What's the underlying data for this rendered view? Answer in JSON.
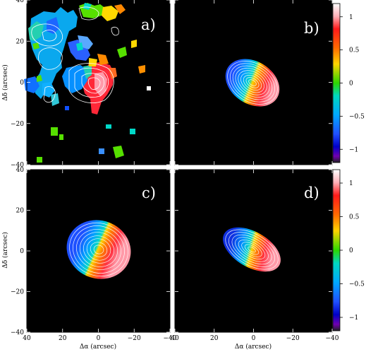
{
  "chart_data": {
    "type": "heatmap",
    "panels": [
      {
        "label": "a)",
        "kind": "observed"
      },
      {
        "label": "b)",
        "kind": "model"
      },
      {
        "label": "c)",
        "kind": "model"
      },
      {
        "label": "d)",
        "kind": "model"
      }
    ],
    "xlabel": "Δα (arcsec)",
    "ylabel": "Δδ (arcsec)",
    "xlim": [
      40,
      -40
    ],
    "ylim": [
      -40,
      40
    ],
    "xticks": [
      "40",
      "20",
      "0",
      "−20",
      "−40"
    ],
    "yticks": [
      "40",
      "20",
      "0",
      "−20",
      "−40"
    ],
    "colorbar": {
      "range": [
        -1.2,
        1.2
      ],
      "ticks": [
        "1",
        "0.5",
        "0",
        "−0.5",
        "−1"
      ],
      "tick_values": [
        1,
        0.5,
        0,
        -0.5,
        -1
      ]
    },
    "colors": {
      "background": "#000000",
      "contour": "#ffffff"
    }
  }
}
